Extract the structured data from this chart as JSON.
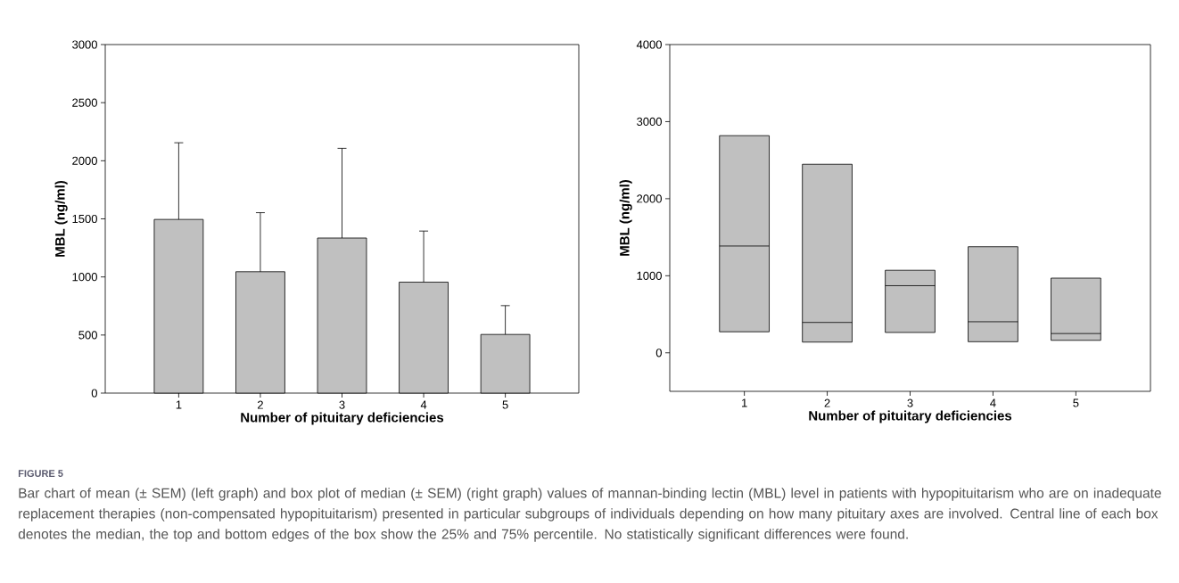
{
  "chart_data": [
    {
      "type": "bar",
      "xlabel": "Number of pituitary deficiencies",
      "ylabel": "MBL (ng/ml)",
      "categories": [
        "1",
        "2",
        "3",
        "4",
        "5"
      ],
      "values": [
        1495,
        1045,
        1335,
        955,
        505
      ],
      "errors": [
        660,
        508,
        772,
        440,
        248
      ],
      "color": "#c0c0c0",
      "ylim": [
        0,
        3000
      ],
      "yticks": [
        0,
        500,
        1000,
        1500,
        2000,
        2500,
        3000
      ],
      "annotations": [
        "FIGURE 5",
        "Bar chart of mean (± SEM) (left graph) and box plot of median (± SEM) (right graph) values of mannan-binding lectin (MBL) level in patients with hypopituitarism who are on inadequate replacement therapies (non-compensated hypopituitarism) presented in particular subgroups of individuals depending on how many pituitary axes are involved. Central line of each box denotes the median, the top and bottom edges of the box show the 25% and 75% percentile. No statistically significant differences were found."
      ]
    },
    {
      "type": "box",
      "xlabel": "Number of pituitary deficiencies",
      "ylabel": "MBL (ng/ml)",
      "categories": [
        "1",
        "2",
        "3",
        "4",
        "5"
      ],
      "color": "#c0c0c0",
      "ylim": [
        -500,
        4000
      ],
      "yticks": [
        0,
        1000,
        2000,
        3000,
        4000
      ],
      "boxes": [
        {
          "low": 273,
          "q1": 273,
          "median": 1386,
          "q3": 2818,
          "high": 2818
        },
        {
          "low": 139,
          "q1": 139,
          "median": 394,
          "q3": 2447,
          "high": 2447
        },
        {
          "low": 264,
          "q1": 264,
          "median": 871,
          "q3": 1071,
          "high": 1071
        },
        {
          "low": 144,
          "q1": 144,
          "median": 403,
          "q3": 1377,
          "high": 1377
        },
        {
          "low": 162,
          "q1": 162,
          "median": 250,
          "q3": 969,
          "high": 969
        }
      ]
    }
  ]
}
